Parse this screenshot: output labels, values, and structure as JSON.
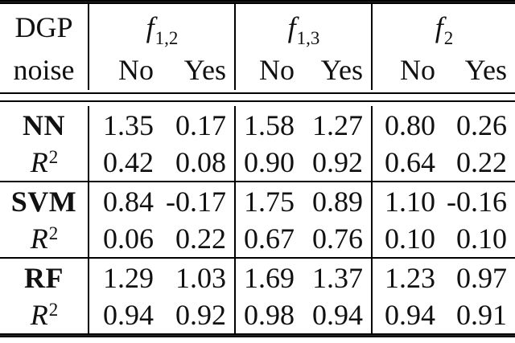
{
  "table": {
    "corner": {
      "line1": "DGP",
      "line2": "noise"
    },
    "groups": [
      {
        "name_base": "f",
        "name_sub": "1,2",
        "headers": [
          "No",
          "Yes"
        ]
      },
      {
        "name_base": "f",
        "name_sub": "1,3",
        "headers": [
          "No",
          "Yes"
        ]
      },
      {
        "name_base": "f",
        "name_sub": "2",
        "headers": [
          "No",
          "Yes"
        ]
      }
    ],
    "row_groups": [
      {
        "label": "NN",
        "metric_base": "R",
        "metric_sup": "2",
        "main": [
          "1.35",
          "0.17",
          "1.58",
          "1.27",
          "0.80",
          "0.26"
        ],
        "r2": [
          "0.42",
          "0.08",
          "0.90",
          "0.92",
          "0.64",
          "0.22"
        ]
      },
      {
        "label": "SVM",
        "metric_base": "R",
        "metric_sup": "2",
        "main": [
          "0.84",
          "-0.17",
          "1.75",
          "0.89",
          "1.10",
          "-0.16"
        ],
        "r2": [
          "0.06",
          "0.22",
          "0.67",
          "0.76",
          "0.10",
          "0.10"
        ]
      },
      {
        "label": "RF",
        "metric_base": "R",
        "metric_sup": "2",
        "main": [
          "1.29",
          "1.03",
          "1.69",
          "1.37",
          "1.23",
          "0.97"
        ],
        "r2": [
          "0.94",
          "0.92",
          "0.98",
          "0.94",
          "0.94",
          "0.91"
        ]
      }
    ],
    "colors": {
      "text": "#111111",
      "rule": "#000000",
      "background": "#ffffff"
    }
  }
}
